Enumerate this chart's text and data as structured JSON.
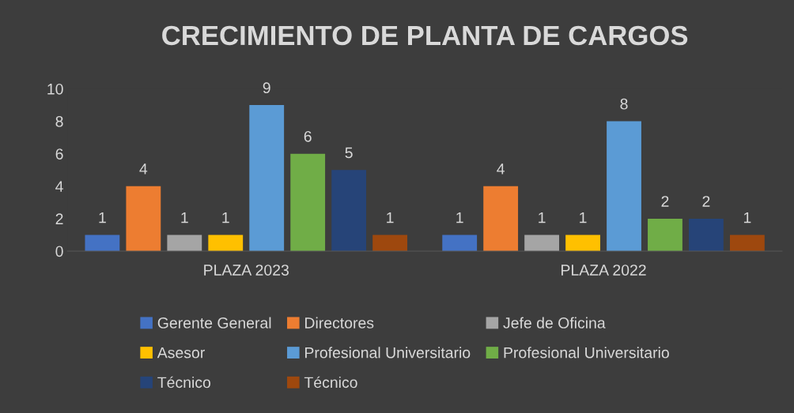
{
  "chart_data": {
    "type": "bar",
    "title": "CRECIMIENTO DE PLANTA DE CARGOS",
    "categories": [
      "PLAZA 2023",
      "PLAZA 2022"
    ],
    "series": [
      {
        "name": "Gerente General",
        "color": "#4472c4",
        "values": [
          1,
          1
        ]
      },
      {
        "name": "Directores",
        "color": "#ed7d31",
        "values": [
          4,
          4
        ]
      },
      {
        "name": "Jefe de Oficina",
        "color": "#a5a5a5",
        "values": [
          1,
          1
        ]
      },
      {
        "name": "Asesor",
        "color": "#ffc000",
        "values": [
          1,
          1
        ]
      },
      {
        "name": "Profesional Universitario",
        "color": "#5b9bd5",
        "values": [
          9,
          8
        ]
      },
      {
        "name": "Profesional Universitario",
        "color": "#70ad47",
        "values": [
          6,
          2
        ]
      },
      {
        "name": "Técnico",
        "color": "#264478",
        "values": [
          5,
          2
        ]
      },
      {
        "name": "Técnico",
        "color": "#9e480e",
        "values": [
          1,
          1
        ]
      }
    ],
    "ylim": [
      0,
      10
    ],
    "yticks": [
      0,
      2,
      4,
      6,
      8,
      10
    ],
    "grid": false,
    "legend": "bottom",
    "data_labels": true
  }
}
